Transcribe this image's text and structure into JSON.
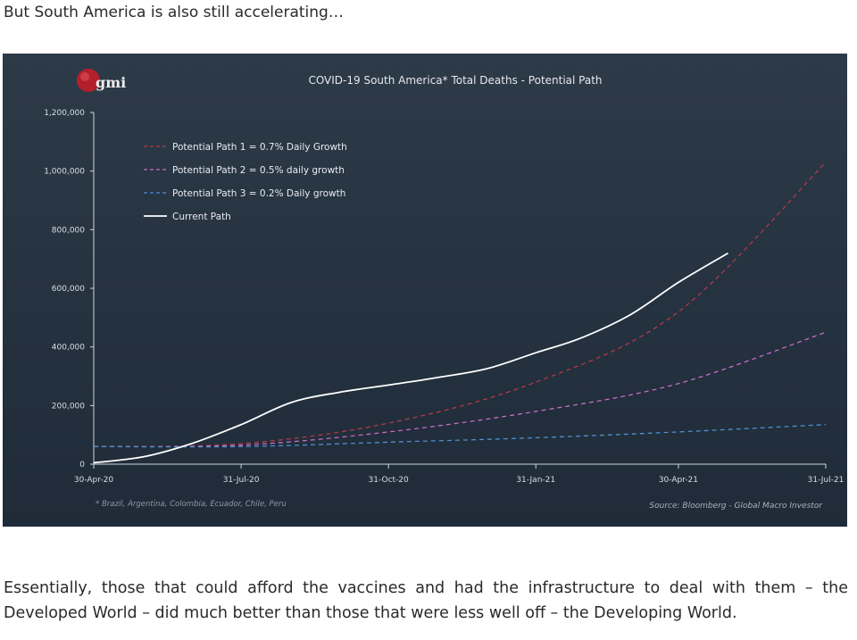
{
  "intro_text": "But South America is also still accelerating…",
  "outro_text": "Essentially, those that could afford the vaccines and had the infrastructure to deal with them – the Developed World – did much better than those that were less well off – the Developing World.",
  "logo_text": "gmi",
  "colors": {
    "background": "#28343f",
    "current": "#ffffff",
    "path1": "#b23a48",
    "path2": "#c86bc4",
    "path3": "#4f8fd1",
    "logo": "#b3202c"
  },
  "chart_data": {
    "type": "line",
    "title": "COVID-19 South America* Total Deaths - Potential Path",
    "xlabel": "",
    "ylabel": "",
    "footnote": "* Brazil, Argentina, Colombia, Ecuador, Chile, Peru",
    "source": "Source: Bloomberg - Global Macro Investor",
    "x_ticks": [
      "30-Apr-20",
      "31-Jul-20",
      "31-Oct-20",
      "31-Jan-21",
      "30-Apr-21",
      "31-Jul-21"
    ],
    "y_ticks": [
      "0",
      "200,000",
      "400,000",
      "600,000",
      "800,000",
      "1,000,000",
      "1,200,000"
    ],
    "ylim": [
      0,
      1200000
    ],
    "legend_position": "top-left",
    "series": [
      {
        "name": "Potential Path 1 = 0.7% Daily Growth",
        "style": "dashed",
        "x": [
          "2020-04-30",
          "2020-07-31",
          "2020-10-31",
          "2021-01-31",
          "2021-04-30",
          "2021-07-31"
        ],
        "y": [
          60000,
          70000,
          140000,
          280000,
          520000,
          1030000
        ]
      },
      {
        "name": "Potential Path 2 = 0.5% daily growth",
        "style": "dashed",
        "x": [
          "2020-04-30",
          "2020-07-31",
          "2020-10-31",
          "2021-01-31",
          "2021-04-30",
          "2021-07-31"
        ],
        "y": [
          60000,
          65000,
          110000,
          180000,
          275000,
          450000
        ]
      },
      {
        "name": "Potential Path 3 = 0.2% Daily growth",
        "style": "dashed",
        "x": [
          "2020-04-30",
          "2020-07-31",
          "2020-10-31",
          "2021-01-31",
          "2021-04-30",
          "2021-07-31"
        ],
        "y": [
          60000,
          60000,
          75000,
          90000,
          110000,
          135000
        ]
      },
      {
        "name": "Current Path",
        "style": "solid",
        "x": [
          "2020-04-30",
          "2020-05-31",
          "2020-06-30",
          "2020-07-31",
          "2020-08-31",
          "2020-09-30",
          "2020-10-31",
          "2020-11-30",
          "2020-12-31",
          "2021-01-31",
          "2021-02-28",
          "2021-03-31",
          "2021-04-30",
          "2021-05-31"
        ],
        "y": [
          5000,
          25000,
          70000,
          135000,
          210000,
          245000,
          270000,
          295000,
          325000,
          380000,
          430000,
          510000,
          620000,
          720000
        ]
      }
    ]
  }
}
